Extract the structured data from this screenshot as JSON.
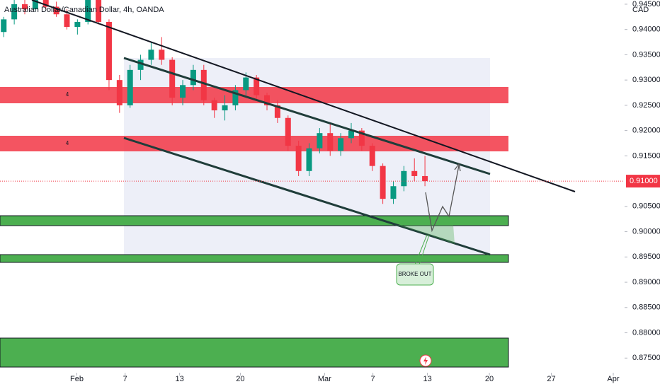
{
  "chart_data": {
    "type": "candlestick",
    "title": "Australian Dollar/Canadian Dollar, 4h, OANDA",
    "currency": "CAD",
    "annotation": "BROKE OUT",
    "zone_label": "4",
    "up_color": "#089981",
    "down_color": "#f23645",
    "x": [
      0.3,
      1.15,
      2.0,
      2.85,
      3.7,
      4.55,
      5.4,
      6.25,
      7.1,
      7.95,
      8.8,
      9.65,
      10.5,
      11.35,
      12.2,
      13.05,
      13.9,
      14.75,
      15.6,
      16.45,
      17.3,
      18.15,
      19.0,
      19.85,
      20.7,
      21.55,
      22.4,
      23.25,
      24.1,
      24.95,
      25.8,
      26.65,
      27.5,
      28.35,
      29.2,
      30.05,
      30.9,
      31.75,
      32.6,
      33.45,
      34.3
    ],
    "open": [
      0.9395,
      0.942,
      0.945,
      0.944,
      0.947,
      0.9445,
      0.943,
      0.9405,
      0.9415,
      0.946,
      0.9415,
      0.93,
      0.925,
      0.932,
      0.934,
      0.936,
      0.934,
      0.9265,
      0.929,
      0.932,
      0.926,
      0.924,
      0.925,
      0.928,
      0.9305,
      0.927,
      0.925,
      0.9225,
      0.917,
      0.912,
      0.9165,
      0.9195,
      0.916,
      0.9185,
      0.92,
      0.917,
      0.913,
      0.9065,
      0.909,
      0.912,
      0.911
    ],
    "high": [
      0.9425,
      0.946,
      0.947,
      0.948,
      0.9478,
      0.9455,
      0.944,
      0.942,
      0.947,
      0.9465,
      0.942,
      0.931,
      0.933,
      0.935,
      0.9375,
      0.9385,
      0.9345,
      0.93,
      0.933,
      0.933,
      0.9265,
      0.927,
      0.929,
      0.9315,
      0.931,
      0.9275,
      0.926,
      0.923,
      0.918,
      0.9175,
      0.9205,
      0.9215,
      0.9195,
      0.9215,
      0.9205,
      0.9175,
      0.9135,
      0.91,
      0.913,
      0.9145,
      0.915
    ],
    "low": [
      0.9385,
      0.941,
      0.943,
      0.9435,
      0.944,
      0.9425,
      0.94,
      0.939,
      0.941,
      0.941,
      0.928,
      0.9235,
      0.9245,
      0.93,
      0.933,
      0.933,
      0.925,
      0.925,
      0.928,
      0.925,
      0.9225,
      0.922,
      0.924,
      0.927,
      0.926,
      0.924,
      0.9215,
      0.916,
      0.911,
      0.911,
      0.9155,
      0.915,
      0.915,
      0.9175,
      0.916,
      0.912,
      0.9055,
      0.9055,
      0.908,
      0.91,
      0.909
    ],
    "close": [
      0.942,
      0.945,
      0.944,
      0.947,
      0.9445,
      0.943,
      0.9405,
      0.9415,
      0.946,
      0.9415,
      0.93,
      0.925,
      0.932,
      0.934,
      0.936,
      0.934,
      0.9265,
      0.929,
      0.932,
      0.926,
      0.924,
      0.925,
      0.928,
      0.9305,
      0.927,
      0.925,
      0.9225,
      0.917,
      0.912,
      0.9165,
      0.9195,
      0.916,
      0.9185,
      0.92,
      0.917,
      0.913,
      0.9065,
      0.909,
      0.912,
      0.911,
      0.91
    ],
    "last_price": {
      "value": 0.91,
      "label": "0.91000"
    },
    "xlim": [
      0,
      50.3
    ],
    "xticks": [
      {
        "value": 6.2,
        "label": "Feb"
      },
      {
        "value": 10.1,
        "label": "7"
      },
      {
        "value": 14.5,
        "label": "13"
      },
      {
        "value": 19.4,
        "label": "20"
      },
      {
        "value": 26.2,
        "label": "Mar"
      },
      {
        "value": 30.1,
        "label": "7"
      },
      {
        "value": 34.5,
        "label": "13"
      },
      {
        "value": 39.5,
        "label": "20"
      },
      {
        "value": 44.5,
        "label": "27"
      },
      {
        "value": 49.5,
        "label": "Apr"
      }
    ],
    "ylim": [
      0.87238,
      0.94583
    ],
    "yticks": [
      {
        "value": 0.875,
        "label": "0.87500"
      },
      {
        "value": 0.88,
        "label": "0.88000"
      },
      {
        "value": 0.885,
        "label": "0.88500"
      },
      {
        "value": 0.89,
        "label": "0.89000"
      },
      {
        "value": 0.895,
        "label": "0.89500"
      },
      {
        "value": 0.9,
        "label": "0.90000"
      },
      {
        "value": 0.905,
        "label": "0.90500"
      },
      {
        "value": 0.915,
        "label": "0.91500"
      },
      {
        "value": 0.92,
        "label": "0.92000"
      },
      {
        "value": 0.925,
        "label": "0.92500"
      },
      {
        "value": 0.93,
        "label": "0.93000"
      },
      {
        "value": 0.935,
        "label": "0.93500"
      },
      {
        "value": 0.94,
        "label": "0.94000"
      },
      {
        "value": 0.945,
        "label": "0.94500"
      }
    ]
  }
}
